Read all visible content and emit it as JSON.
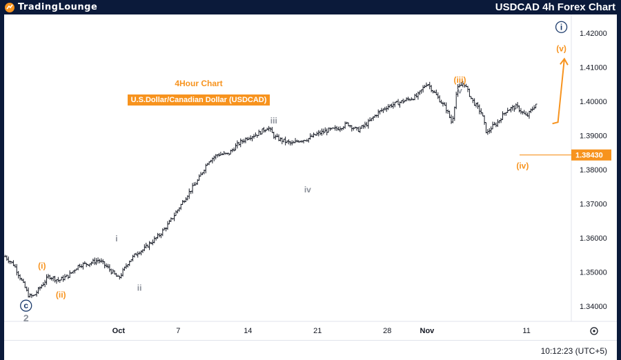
{
  "header": {
    "brand": "TradingLounge",
    "chart_heading": "USDCAD 4h Forex Chart"
  },
  "overlay": {
    "timeframe_label": "4Hour Chart",
    "instrument_label": "U.S.Dollar/Canadian Dollar (USDCAD)"
  },
  "footer": {
    "clock": "10:12:23 (UTC+5)"
  },
  "colors": {
    "orange": "#f7931e",
    "gray": "#8a8f99",
    "navy": "#1b3a6b",
    "candle": "#131722"
  },
  "chart_data": {
    "type": "line",
    "symbol": "USDCAD",
    "timeframe": "4h",
    "ylim": [
      1.3355,
      1.4255
    ],
    "y_ticks": [
      "1.34000",
      "1.35000",
      "1.36000",
      "1.37000",
      "1.38000",
      "1.39000",
      "1.40000",
      "1.41000",
      "1.42000"
    ],
    "y_tick_values": [
      1.34,
      1.35,
      1.36,
      1.37,
      1.38,
      1.39,
      1.4,
      1.41,
      1.42
    ],
    "x_ticks": [
      "Oct",
      "7",
      "14",
      "21",
      "28",
      "Nov",
      "11"
    ],
    "x_tick_days": [
      1,
      7,
      14,
      21,
      28,
      32,
      42
    ],
    "xlim_days": [
      -10.5,
      46.5
    ],
    "current_price": {
      "value": 1.3843,
      "label": "1.38430"
    },
    "series": [
      {
        "x_days": [
          -10.4,
          -9.5,
          -8.5,
          -8.0,
          -7.5,
          -7.0,
          -6.0,
          -5.0,
          -4.0,
          -3.0,
          -2.0,
          -1.0,
          0.0,
          1.0,
          2.0,
          3.0,
          3.5,
          4.0,
          5.0,
          6.0,
          7.0,
          8.0,
          9.0,
          10.0,
          11.0,
          12.0,
          13.0,
          14.0,
          15.0,
          16.0,
          16.7,
          17.5,
          18.5,
          19.0,
          20.0,
          21.0,
          22.0,
          23.0,
          24.0,
          25.0,
          26.0,
          27.0,
          28.0,
          29.0,
          30.0,
          31.0,
          32.0,
          33.0,
          34.0,
          34.5,
          35.0,
          35.7,
          36.5,
          37.5,
          38.0,
          38.5,
          39.0,
          40.0,
          41.0,
          42.0,
          43.0
        ],
        "values": [
          1.3545,
          1.352,
          1.346,
          1.3428,
          1.343,
          1.345,
          1.3488,
          1.3475,
          1.349,
          1.352,
          1.3525,
          1.3535,
          1.351,
          1.348,
          1.353,
          1.356,
          1.3565,
          1.358,
          1.3605,
          1.364,
          1.3685,
          1.373,
          1.377,
          1.3825,
          1.3845,
          1.3845,
          1.3875,
          1.3895,
          1.3905,
          1.3925,
          1.3895,
          1.3885,
          1.3875,
          1.3885,
          1.389,
          1.3905,
          1.3915,
          1.392,
          1.3935,
          1.3915,
          1.3935,
          1.3965,
          1.3985,
          1.3995,
          1.4005,
          1.4015,
          1.4055,
          1.4015,
          1.3975,
          1.3935,
          1.4035,
          1.4055,
          1.4005,
          1.3965,
          1.3905,
          1.3925,
          1.3935,
          1.3975,
          1.3985,
          1.3955,
          1.3995
        ]
      }
    ],
    "wave_labels": [
      {
        "text": "c",
        "x_day": -8.3,
        "y": 1.3393,
        "color": "navy",
        "circled": true
      },
      {
        "text": "2",
        "x_day": -8.3,
        "y": 1.3355,
        "color": "gray",
        "circled": false
      },
      {
        "text": "(i)",
        "x_day": -6.7,
        "y": 1.351,
        "color": "orange",
        "circled": false
      },
      {
        "text": "(ii)",
        "x_day": -4.8,
        "y": 1.3425,
        "color": "orange",
        "circled": false
      },
      {
        "text": "i",
        "x_day": 0.8,
        "y": 1.359,
        "color": "gray",
        "circled": false
      },
      {
        "text": "ii",
        "x_day": 3.1,
        "y": 1.3445,
        "color": "gray",
        "circled": false
      },
      {
        "text": "iii",
        "x_day": 16.6,
        "y": 1.3935,
        "color": "gray",
        "circled": false
      },
      {
        "text": "iv",
        "x_day": 20.0,
        "y": 1.3733,
        "color": "gray",
        "circled": false
      },
      {
        "text": "(iii)",
        "x_day": 35.3,
        "y": 1.4055,
        "color": "orange",
        "circled": false
      },
      {
        "text": "v",
        "x_day": 35.3,
        "y": 1.4023,
        "color": "gray",
        "circled": false
      },
      {
        "text": "(iv)",
        "x_day": 41.6,
        "y": 1.3803,
        "color": "orange",
        "circled": false
      },
      {
        "text": "(v)",
        "x_day": 45.5,
        "y": 1.4147,
        "color": "orange",
        "circled": false
      },
      {
        "text": "i",
        "x_day": 45.5,
        "y": 1.421,
        "color": "navy",
        "circled": true
      }
    ],
    "projection": {
      "from_day": 44.6,
      "from_y": 1.3935,
      "to_day": 45.8,
      "to_y": 1.4125
    }
  }
}
